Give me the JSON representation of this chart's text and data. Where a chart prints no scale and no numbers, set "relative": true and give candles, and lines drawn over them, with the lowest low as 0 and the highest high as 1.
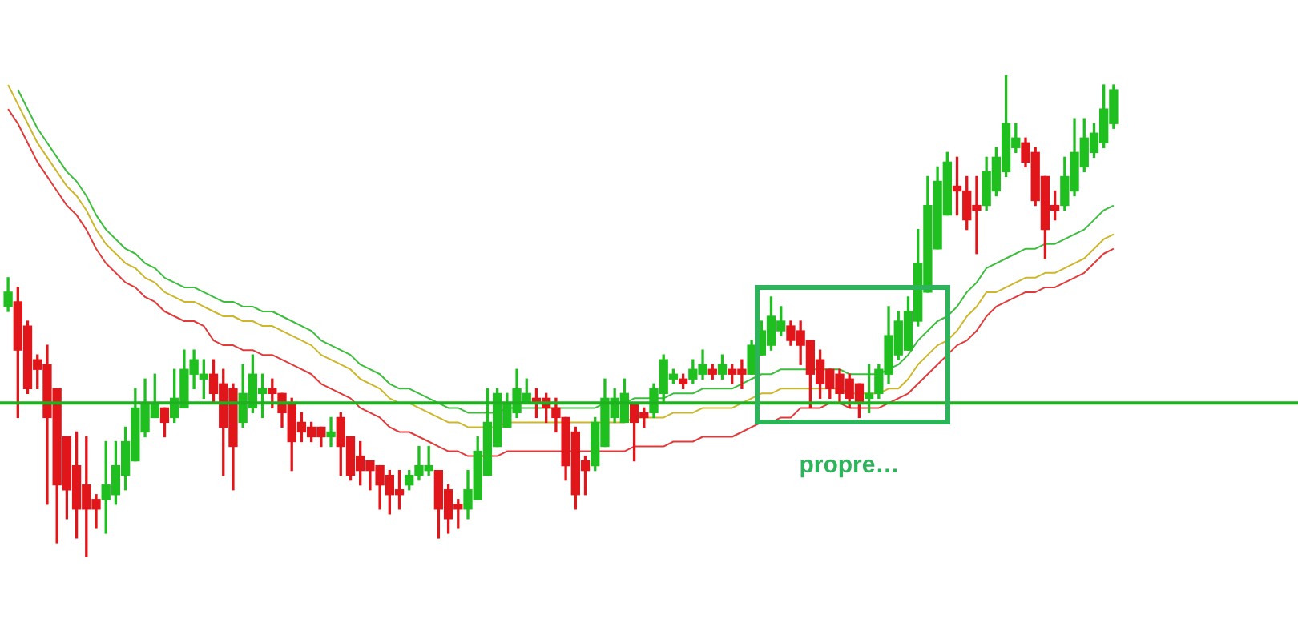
{
  "chart_data": {
    "type": "candlestick",
    "relative": true,
    "tick_labels": false,
    "categories": [
      null,
      null,
      null,
      null,
      null,
      null,
      null,
      null,
      null,
      null,
      null,
      null,
      null,
      null,
      null,
      null,
      null,
      null,
      null,
      null,
      null,
      null,
      null,
      null,
      null,
      null,
      null,
      null,
      null,
      null,
      null,
      null,
      null,
      null,
      null,
      null,
      null,
      null,
      null,
      null,
      null,
      null,
      null,
      null,
      null,
      null,
      null,
      null,
      null,
      null,
      null,
      null,
      null,
      null,
      null,
      null,
      null,
      null,
      null,
      null,
      null,
      null,
      null,
      null,
      null,
      null,
      null,
      null,
      null,
      null,
      null,
      null,
      null,
      null,
      null,
      null,
      null,
      null,
      null,
      null,
      null,
      null,
      null,
      null,
      null,
      null,
      null,
      null,
      null,
      null,
      null,
      null,
      null,
      null,
      null,
      null,
      null,
      null,
      null,
      null,
      null,
      null,
      null,
      null,
      null,
      null,
      null,
      null,
      null,
      null,
      null,
      null,
      null,
      null
    ],
    "ohlc": [
      [
        0.52,
        0.58,
        0.51,
        0.55
      ],
      [
        0.53,
        0.56,
        0.29,
        0.43
      ],
      [
        0.48,
        0.49,
        0.34,
        0.35
      ],
      [
        0.41,
        0.42,
        0.35,
        0.39
      ],
      [
        0.4,
        0.44,
        0.11,
        0.29
      ],
      [
        0.35,
        0.35,
        0.03,
        0.15
      ],
      [
        0.25,
        0.25,
        0.08,
        0.14
      ],
      [
        0.19,
        0.26,
        0.04,
        0.1
      ],
      [
        0.15,
        0.25,
        0,
        0.1
      ],
      [
        0.12,
        0.13,
        0.06,
        0.1
      ],
      [
        0.12,
        0.24,
        0.05,
        0.15
      ],
      [
        0.13,
        0.24,
        0.11,
        0.19
      ],
      [
        0.17,
        0.27,
        0.14,
        0.24
      ],
      [
        0.2,
        0.35,
        0.2,
        0.31
      ],
      [
        0.26,
        0.37,
        0.25,
        0.32
      ],
      [
        0.29,
        0.38,
        0.29,
        0.32
      ],
      [
        0.31,
        0.31,
        0.25,
        0.28
      ],
      [
        0.29,
        0.39,
        0.28,
        0.33
      ],
      [
        0.31,
        0.43,
        0.31,
        0.39
      ],
      [
        0.38,
        0.43,
        0.35,
        0.41
      ],
      [
        0.37,
        0.41,
        0.33,
        0.38
      ],
      [
        0.38,
        0.41,
        0.32,
        0.34
      ],
      [
        0.36,
        0.39,
        0.17,
        0.27
      ],
      [
        0.35,
        0.36,
        0.14,
        0.23
      ],
      [
        0.28,
        0.4,
        0.27,
        0.34
      ],
      [
        0.31,
        0.42,
        0.3,
        0.38
      ],
      [
        0.34,
        0.38,
        0.29,
        0.35
      ],
      [
        0.35,
        0.37,
        0.31,
        0.34
      ],
      [
        0.34,
        0.34,
        0.27,
        0.3
      ],
      [
        0.32,
        0.33,
        0.18,
        0.24
      ],
      [
        0.28,
        0.3,
        0.24,
        0.26
      ],
      [
        0.27,
        0.28,
        0.24,
        0.25
      ],
      [
        0.27,
        0.27,
        0.23,
        0.25
      ],
      [
        0.25,
        0.29,
        0.23,
        0.26
      ],
      [
        0.29,
        0.3,
        0.17,
        0.23
      ],
      [
        0.25,
        0.25,
        0.16,
        0.17
      ],
      [
        0.21,
        0.24,
        0.15,
        0.18
      ],
      [
        0.2,
        0.2,
        0.14,
        0.18
      ],
      [
        0.19,
        0.19,
        0.1,
        0.15
      ],
      [
        0.17,
        0.18,
        0.09,
        0.13
      ],
      [
        0.14,
        0.18,
        0.1,
        0.13
      ],
      [
        0.15,
        0.18,
        0.14,
        0.17
      ],
      [
        0.17,
        0.23,
        0.16,
        0.19
      ],
      [
        0.18,
        0.23,
        0.17,
        0.19
      ],
      [
        0.18,
        0.18,
        0.04,
        0.1
      ],
      [
        0.14,
        0.15,
        0.05,
        0.08
      ],
      [
        0.11,
        0.12,
        0.06,
        0.1
      ],
      [
        0.1,
        0.18,
        0.08,
        0.14
      ],
      [
        0.12,
        0.25,
        0.12,
        0.22
      ],
      [
        0.17,
        0.35,
        0.17,
        0.28
      ],
      [
        0.23,
        0.35,
        0.23,
        0.34
      ],
      [
        0.27,
        0.34,
        0.27,
        0.32
      ],
      [
        0.3,
        0.39,
        0.29,
        0.35
      ],
      [
        0.32,
        0.37,
        0.32,
        0.34
      ],
      [
        0.33,
        0.35,
        0.29,
        0.32
      ],
      [
        0.33,
        0.34,
        0.28,
        0.31
      ],
      [
        0.31,
        0.33,
        0.26,
        0.29
      ],
      [
        0.29,
        0.29,
        0.16,
        0.19
      ],
      [
        0.26,
        0.27,
        0.1,
        0.13
      ],
      [
        0.2,
        0.21,
        0.13,
        0.18
      ],
      [
        0.19,
        0.29,
        0.18,
        0.28
      ],
      [
        0.23,
        0.37,
        0.23,
        0.33
      ],
      [
        0.29,
        0.35,
        0.28,
        0.33
      ],
      [
        0.28,
        0.37,
        0.28,
        0.34
      ],
      [
        0.32,
        0.32,
        0.2,
        0.28
      ],
      [
        0.3,
        0.31,
        0.27,
        0.29
      ],
      [
        0.3,
        0.36,
        0.29,
        0.35
      ],
      [
        0.34,
        0.42,
        0.32,
        0.41
      ],
      [
        0.37,
        0.39,
        0.36,
        0.38
      ],
      [
        0.37,
        0.38,
        0.35,
        0.36
      ],
      [
        0.37,
        0.41,
        0.36,
        0.39
      ],
      [
        0.38,
        0.43,
        0.37,
        0.4
      ],
      [
        0.39,
        0.4,
        0.37,
        0.38
      ],
      [
        0.38,
        0.42,
        0.37,
        0.4
      ],
      [
        0.39,
        0.4,
        0.36,
        0.38
      ],
      [
        0.39,
        0.41,
        0.35,
        0.38
      ],
      [
        0.38,
        0.45,
        0.38,
        0.44
      ],
      [
        0.42,
        0.49,
        0.42,
        0.47
      ],
      [
        0.44,
        0.54,
        0.43,
        0.5
      ],
      [
        0.47,
        0.52,
        0.46,
        0.49
      ],
      [
        0.48,
        0.49,
        0.44,
        0.45
      ],
      [
        0.47,
        0.49,
        0.4,
        0.44
      ],
      [
        0.45,
        0.45,
        0.31,
        0.38
      ],
      [
        0.41,
        0.43,
        0.33,
        0.36
      ],
      [
        0.39,
        0.39,
        0.33,
        0.35
      ],
      [
        0.38,
        0.39,
        0.32,
        0.34
      ],
      [
        0.37,
        0.38,
        0.31,
        0.33
      ],
      [
        0.36,
        0.36,
        0.29,
        0.32
      ],
      [
        0.33,
        0.4,
        0.3,
        0.34
      ],
      [
        0.34,
        0.4,
        0.33,
        0.39
      ],
      [
        0.38,
        0.52,
        0.36,
        0.46
      ],
      [
        0.42,
        0.51,
        0.41,
        0.49
      ],
      [
        0.43,
        0.54,
        0.43,
        0.51
      ],
      [
        0.49,
        0.68,
        0.48,
        0.61
      ],
      [
        0.55,
        0.79,
        0.55,
        0.73
      ],
      [
        0.64,
        0.81,
        0.64,
        0.78
      ],
      [
        0.71,
        0.84,
        0.71,
        0.82
      ],
      [
        0.77,
        0.83,
        0.71,
        0.76
      ],
      [
        0.76,
        0.79,
        0.68,
        0.7
      ],
      [
        0.73,
        0.79,
        0.63,
        0.72
      ],
      [
        0.73,
        0.83,
        0.72,
        0.8
      ],
      [
        0.76,
        0.85,
        0.75,
        0.83
      ],
      [
        0.8,
        1,
        0.79,
        0.9
      ],
      [
        0.85,
        0.9,
        0.84,
        0.87
      ],
      [
        0.86,
        0.87,
        0.81,
        0.82
      ],
      [
        0.84,
        0.85,
        0.73,
        0.74
      ],
      [
        0.79,
        0.79,
        0.62,
        0.68
      ],
      [
        0.73,
        0.76,
        0.7,
        0.72
      ],
      [
        0.73,
        0.83,
        0.72,
        0.79
      ],
      [
        0.76,
        0.91,
        0.75,
        0.84
      ],
      [
        0.81,
        0.91,
        0.8,
        0.87
      ],
      [
        0.84,
        0.9,
        0.83,
        0.88
      ],
      [
        0.86,
        0.98,
        0.85,
        0.93
      ],
      [
        0.9,
        0.98,
        0.89,
        0.97
      ]
    ],
    "colors": [
      "#1fbf1f",
      "#e0161b",
      "#e0161b",
      "#e0161b",
      "#e0161b",
      "#e0161b",
      "#e0161b",
      "#e0161b",
      "#e0161b",
      "#e0161b",
      "#1fbf1f",
      "#1fbf1f",
      "#1fbf1f",
      "#1fbf1f",
      "#1fbf1f",
      "#1fbf1f",
      "#e0161b",
      "#1fbf1f",
      "#1fbf1f",
      "#1fbf1f",
      "#1fbf1f",
      "#e0161b",
      "#e0161b",
      "#e0161b",
      "#1fbf1f",
      "#1fbf1f",
      "#1fbf1f",
      "#e0161b",
      "#e0161b",
      "#e0161b",
      "#e0161b",
      "#e0161b",
      "#e0161b",
      "#1fbf1f",
      "#e0161b",
      "#e0161b",
      "#e0161b",
      "#e0161b",
      "#e0161b",
      "#e0161b",
      "#e0161b",
      "#1fbf1f",
      "#1fbf1f",
      "#1fbf1f",
      "#e0161b",
      "#e0161b",
      "#e0161b",
      "#1fbf1f",
      "#1fbf1f",
      "#1fbf1f",
      "#1fbf1f",
      "#1fbf1f",
      "#1fbf1f",
      "#1fbf1f",
      "#e0161b",
      "#e0161b",
      "#e0161b",
      "#e0161b",
      "#e0161b",
      "#e0161b",
      "#1fbf1f",
      "#1fbf1f",
      "#1fbf1f",
      "#1fbf1f",
      "#e0161b",
      "#e0161b",
      "#1fbf1f",
      "#1fbf1f",
      "#1fbf1f",
      "#e0161b",
      "#1fbf1f",
      "#1fbf1f",
      "#e0161b",
      "#1fbf1f",
      "#e0161b",
      "#e0161b",
      "#1fbf1f",
      "#1fbf1f",
      "#1fbf1f",
      "#1fbf1f",
      "#e0161b",
      "#e0161b",
      "#e0161b",
      "#e0161b",
      "#e0161b",
      "#e0161b",
      "#e0161b",
      "#e0161b",
      "#1fbf1f",
      "#1fbf1f",
      "#1fbf1f",
      "#1fbf1f",
      "#1fbf1f",
      "#1fbf1f",
      "#1fbf1f",
      "#1fbf1f",
      "#1fbf1f",
      "#e0161b",
      "#e0161b",
      "#e0161b",
      "#1fbf1f",
      "#1fbf1f",
      "#1fbf1f",
      "#1fbf1f",
      "#e0161b",
      "#e0161b",
      "#e0161b",
      "#e0161b",
      "#1fbf1f",
      "#1fbf1f",
      "#1fbf1f",
      "#1fbf1f",
      "#1fbf1f",
      "#1fbf1f"
    ],
    "series": [
      {
        "type": "line",
        "color": "#3cbe3c",
        "values": [
          null,
          0.97,
          0.93,
          0.89,
          0.86,
          0.83,
          0.8,
          0.78,
          0.75,
          0.71,
          0.68,
          0.66,
          0.64,
          0.63,
          0.61,
          0.6,
          0.58,
          0.57,
          0.56,
          0.56,
          0.55,
          0.54,
          0.53,
          0.53,
          0.52,
          0.52,
          0.51,
          0.51,
          0.5,
          0.49,
          0.48,
          0.47,
          0.45,
          0.44,
          0.43,
          0.42,
          0.4,
          0.39,
          0.38,
          0.36,
          0.35,
          0.35,
          0.34,
          0.33,
          0.32,
          0.31,
          0.31,
          0.3,
          0.3,
          0.3,
          0.3,
          0.31,
          0.31,
          0.31,
          0.31,
          0.31,
          0.31,
          0.31,
          0.31,
          0.31,
          0.31,
          0.32,
          0.32,
          0.32,
          0.33,
          0.33,
          0.33,
          0.33,
          0.34,
          0.34,
          0.34,
          0.35,
          0.35,
          0.35,
          0.35,
          0.36,
          0.37,
          0.38,
          0.38,
          0.39,
          0.39,
          0.39,
          0.39,
          0.39,
          0.39,
          0.39,
          0.38,
          0.38,
          0.38,
          0.38,
          0.39,
          0.4,
          0.42,
          0.45,
          0.47,
          0.49,
          0.5,
          0.52,
          0.55,
          0.57,
          0.6,
          0.61,
          0.62,
          0.63,
          0.64,
          0.64,
          0.65,
          0.65,
          0.66,
          0.67,
          0.68,
          0.7,
          0.72,
          0.73
        ]
      },
      {
        "type": "line",
        "color": "#cdb62a",
        "values": [
          0.98,
          0.94,
          0.9,
          0.86,
          0.83,
          0.8,
          0.77,
          0.75,
          0.72,
          0.68,
          0.65,
          0.63,
          0.61,
          0.6,
          0.58,
          0.57,
          0.55,
          0.54,
          0.53,
          0.53,
          0.52,
          0.51,
          0.5,
          0.5,
          0.49,
          0.49,
          0.48,
          0.48,
          0.47,
          0.46,
          0.45,
          0.44,
          0.42,
          0.41,
          0.4,
          0.39,
          0.37,
          0.36,
          0.35,
          0.33,
          0.32,
          0.32,
          0.31,
          0.3,
          0.29,
          0.28,
          0.28,
          0.27,
          0.27,
          0.27,
          0.27,
          0.28,
          0.28,
          0.28,
          0.28,
          0.28,
          0.28,
          0.28,
          0.28,
          0.28,
          0.28,
          0.28,
          0.28,
          0.28,
          0.29,
          0.29,
          0.29,
          0.29,
          0.3,
          0.3,
          0.3,
          0.31,
          0.31,
          0.31,
          0.31,
          0.32,
          0.33,
          0.34,
          0.34,
          0.35,
          0.35,
          0.35,
          0.35,
          0.35,
          0.35,
          0.35,
          0.34,
          0.34,
          0.34,
          0.34,
          0.35,
          0.35,
          0.37,
          0.4,
          0.42,
          0.44,
          0.45,
          0.47,
          0.5,
          0.52,
          0.55,
          0.55,
          0.56,
          0.57,
          0.58,
          0.58,
          0.59,
          0.59,
          0.6,
          0.61,
          0.62,
          0.64,
          0.66,
          0.67
        ]
      },
      {
        "type": "line",
        "color": "#e23a3a",
        "values": [
          0.93,
          0.9,
          0.86,
          0.82,
          0.79,
          0.76,
          0.73,
          0.71,
          0.68,
          0.64,
          0.61,
          0.59,
          0.57,
          0.56,
          0.54,
          0.53,
          0.51,
          0.5,
          0.49,
          0.49,
          0.48,
          0.45,
          0.44,
          0.44,
          0.43,
          0.43,
          0.42,
          0.42,
          0.41,
          0.4,
          0.39,
          0.38,
          0.36,
          0.35,
          0.34,
          0.33,
          0.31,
          0.3,
          0.29,
          0.27,
          0.26,
          0.26,
          0.25,
          0.24,
          0.23,
          0.22,
          0.22,
          0.21,
          0.21,
          0.21,
          0.21,
          0.22,
          0.22,
          0.22,
          0.22,
          0.22,
          0.22,
          0.22,
          0.22,
          0.22,
          0.22,
          0.22,
          0.22,
          0.22,
          0.23,
          0.23,
          0.23,
          0.23,
          0.24,
          0.24,
          0.24,
          0.25,
          0.25,
          0.25,
          0.25,
          0.26,
          0.27,
          0.28,
          0.28,
          0.29,
          0.29,
          0.31,
          0.31,
          0.31,
          0.32,
          0.32,
          0.31,
          0.31,
          0.31,
          0.31,
          0.32,
          0.33,
          0.34,
          0.36,
          0.38,
          0.4,
          0.42,
          0.44,
          0.45,
          0.47,
          0.5,
          0.52,
          0.53,
          0.54,
          0.55,
          0.55,
          0.56,
          0.56,
          0.57,
          0.58,
          0.59,
          0.61,
          0.63,
          0.64
        ]
      }
    ],
    "ref_lines": [
      {
        "axis": "y",
        "value": 0.32,
        "color": "#1fb01f"
      }
    ],
    "annotations": [
      "propre…"
    ]
  }
}
